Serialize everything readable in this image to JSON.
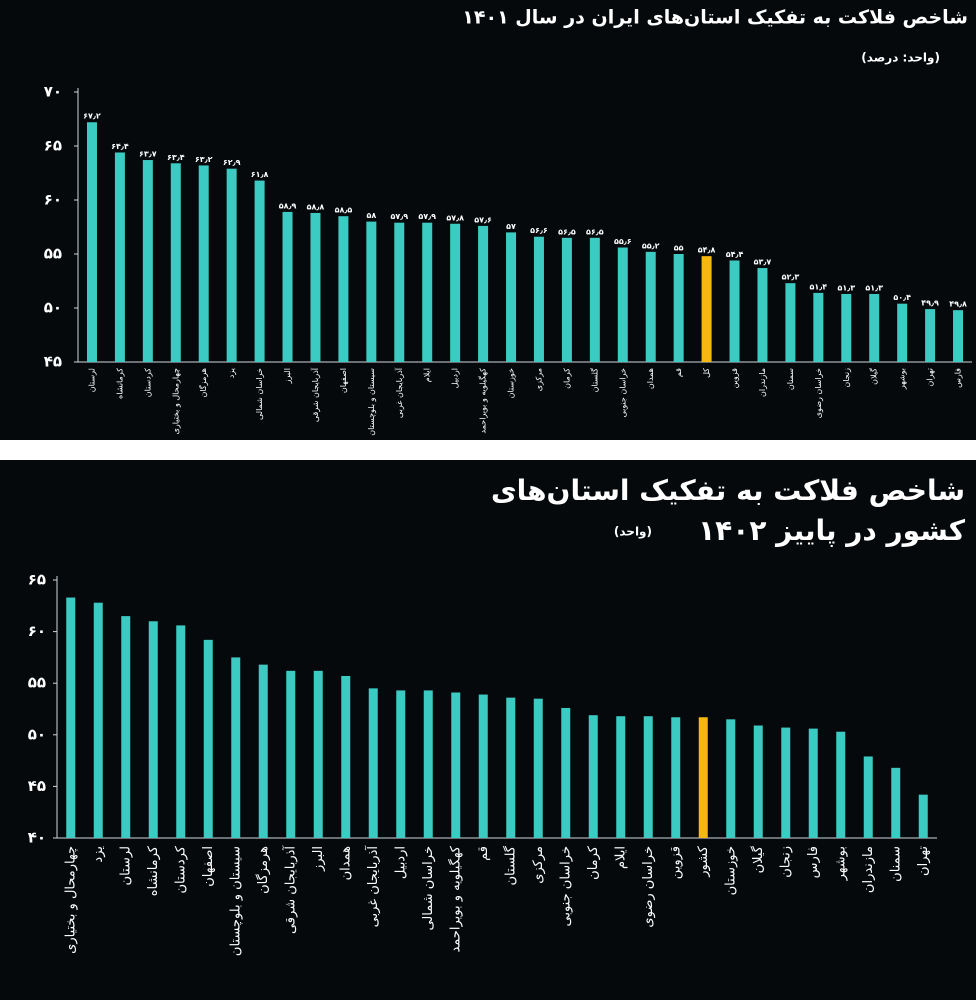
{
  "chart_data": [
    {
      "type": "bar",
      "title": "شاخص فلاکت به تفکیک استان‌های ایران در سال ۱۴۰۱",
      "subtitle": "(واحد: درصد)",
      "categories": [
        "لرستان",
        "کرمانشاه",
        "کردستان",
        "چهارمحال و بختیاری",
        "هرمزگان",
        "یزد",
        "خراسان شمالی",
        "البرز",
        "آذربایجان شرقی",
        "اصفهان",
        "سیستان و بلوچستان",
        "آذربایجان غربی",
        "ایلام",
        "اردبیل",
        "کهگیلویه و بویراحمد",
        "خوزستان",
        "مرکزی",
        "کرمان",
        "گلستان",
        "خراسان جنوبی",
        "همدان",
        "قم",
        "کل",
        "قزوین",
        "مازندران",
        "سمنان",
        "خراسان رضوی",
        "زنجان",
        "گیلان",
        "بوشهر",
        "تهران",
        "فارس"
      ],
      "values": [
        67.2,
        64.4,
        63.7,
        63.4,
        63.2,
        62.9,
        61.8,
        58.9,
        58.8,
        58.5,
        58,
        57.9,
        57.9,
        57.8,
        57.6,
        57,
        56.6,
        56.5,
        56.5,
        55.6,
        55.2,
        55,
        54.8,
        54.4,
        53.7,
        52.3,
        51.4,
        51.3,
        51.3,
        50.4,
        49.9,
        49.8
      ],
      "value_labels": [
        "۶۷٫۲",
        "۶۴٫۴",
        "۶۳٫۷",
        "۶۳٫۴",
        "۶۳٫۲",
        "۶۲٫۹",
        "۶۱٫۸",
        "۵۸٫۹",
        "۵۸٫۸",
        "۵۸٫۵",
        "۵۸",
        "۵۷٫۹",
        "۵۷٫۹",
        "۵۷٫۸",
        "۵۷٫۶",
        "۵۷",
        "۵۶٫۶",
        "۵۶٫۵",
        "۵۶٫۵",
        "۵۵٫۶",
        "۵۵٫۲",
        "۵۵",
        "۵۴٫۸",
        "۵۴٫۴",
        "۵۳٫۷",
        "۵۲٫۳",
        "۵۱٫۴",
        "۵۱٫۳",
        "۵۱٫۳",
        "۵۰٫۴",
        "۴۹٫۹",
        "۴۹٫۸"
      ],
      "colors": [
        "#3ccbc2",
        "#3ccbc2",
        "#3ccbc2",
        "#3ccbc2",
        "#3ccbc2",
        "#3ccbc2",
        "#3ccbc2",
        "#3ccbc2",
        "#3ccbc2",
        "#3ccbc2",
        "#3ccbc2",
        "#3ccbc2",
        "#3ccbc2",
        "#3ccbc2",
        "#3ccbc2",
        "#3ccbc2",
        "#3ccbc2",
        "#3ccbc2",
        "#3ccbc2",
        "#3ccbc2",
        "#3ccbc2",
        "#3ccbc2",
        "#f6b80f",
        "#3ccbc2",
        "#3ccbc2",
        "#3ccbc2",
        "#3ccbc2",
        "#3ccbc2",
        "#3ccbc2",
        "#3ccbc2",
        "#3ccbc2",
        "#3ccbc2"
      ],
      "ylim": [
        45,
        70
      ],
      "yticks": [
        {
          "value": 45,
          "label": "۴۵"
        },
        {
          "value": 50,
          "label": "۵۰"
        },
        {
          "value": 55,
          "label": "۵۵"
        },
        {
          "value": 60,
          "label": "۶۰"
        },
        {
          "value": 65,
          "label": "۶۵"
        },
        {
          "value": 70,
          "label": "۷۰"
        }
      ],
      "grid": false
    },
    {
      "type": "bar",
      "title": [
        "شاخص فلاکت به تفکیک استان‌های",
        "کشور در پاییز ۱۴۰۲"
      ],
      "subtitle": "(واحد)",
      "categories": [
        "چهارمحال و بختیاری",
        "یزد",
        "لرستان",
        "کرمانشاه",
        "کردستان",
        "اصفهان",
        "سیستان و بلوچستان",
        "هرمزگان",
        "آذربایجان شرقی",
        "البرز",
        "همدان",
        "آذربایجان غربی",
        "اردبیل",
        "خراسان شمالی",
        "کهگیلویه و بویراحمد",
        "قم",
        "گلستان",
        "مرکزی",
        "خراسان جنوبی",
        "کرمان",
        "ایلام",
        "خراسان رضوی",
        "قزوین",
        "کشور",
        "خوزستان",
        "گیلان",
        "زنجان",
        "فارس",
        "بوشهر",
        "مازندران",
        "سمنان",
        "تهران"
      ],
      "values": [
        63.3,
        62.8,
        61.5,
        61.0,
        60.6,
        59.2,
        57.5,
        56.8,
        56.2,
        56.2,
        55.7,
        54.5,
        54.3,
        54.3,
        54.1,
        53.9,
        53.6,
        53.5,
        52.6,
        51.9,
        51.8,
        51.8,
        51.7,
        51.7,
        51.5,
        50.9,
        50.7,
        50.6,
        50.3,
        47.9,
        46.8,
        44.2
      ],
      "colors": [
        "#3ccbc2",
        "#3ccbc2",
        "#3ccbc2",
        "#3ccbc2",
        "#3ccbc2",
        "#3ccbc2",
        "#3ccbc2",
        "#3ccbc2",
        "#3ccbc2",
        "#3ccbc2",
        "#3ccbc2",
        "#3ccbc2",
        "#3ccbc2",
        "#3ccbc2",
        "#3ccbc2",
        "#3ccbc2",
        "#3ccbc2",
        "#3ccbc2",
        "#3ccbc2",
        "#3ccbc2",
        "#3ccbc2",
        "#3ccbc2",
        "#3ccbc2",
        "#f6b80f",
        "#3ccbc2",
        "#3ccbc2",
        "#3ccbc2",
        "#3ccbc2",
        "#3ccbc2",
        "#3ccbc2",
        "#3ccbc2",
        "#3ccbc2"
      ],
      "ylim": [
        40,
        65
      ],
      "yticks": [
        {
          "value": 40,
          "label": "۴۰"
        },
        {
          "value": 45,
          "label": "۴۵"
        },
        {
          "value": 50,
          "label": "۵۰"
        },
        {
          "value": 55,
          "label": "۵۵"
        },
        {
          "value": 60,
          "label": "۶۰"
        },
        {
          "value": 65,
          "label": "۶۵"
        }
      ],
      "grid": false
    }
  ]
}
